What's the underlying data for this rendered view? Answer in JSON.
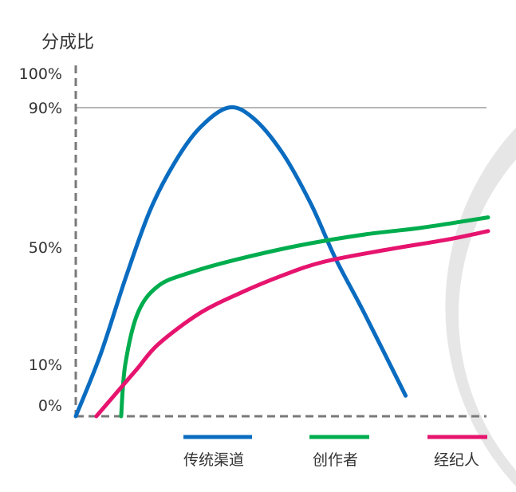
{
  "chart_data": {
    "type": "line",
    "ylabel": "分成比",
    "ylim": [
      0,
      100
    ],
    "yticks": [
      {
        "value": 100,
        "label": "100%"
      },
      {
        "value": 90,
        "label": "90%"
      },
      {
        "value": 50,
        "label": "50%"
      },
      {
        "value": 10,
        "label": "10%"
      },
      {
        "value": 0,
        "label": "0%"
      }
    ],
    "reference_line": 90,
    "series": [
      {
        "name": "传统渠道",
        "color": "#0a6cc0",
        "points": [
          [
            0,
            0
          ],
          [
            6,
            18
          ],
          [
            12,
            40
          ],
          [
            18,
            60
          ],
          [
            24,
            74
          ],
          [
            30,
            84
          ],
          [
            37,
            90
          ],
          [
            43,
            87
          ],
          [
            50,
            77
          ],
          [
            57,
            62
          ],
          [
            63,
            46
          ],
          [
            70,
            30
          ],
          [
            80,
            6
          ]
        ]
      },
      {
        "name": "创作者",
        "color": "#00ad4e",
        "points": [
          [
            11,
            0
          ],
          [
            12,
            15
          ],
          [
            15,
            30
          ],
          [
            20,
            38
          ],
          [
            28,
            42
          ],
          [
            40,
            46
          ],
          [
            55,
            50
          ],
          [
            70,
            53
          ],
          [
            84,
            55
          ],
          [
            100,
            58
          ]
        ]
      },
      {
        "name": "经纪人",
        "color": "#e6146e",
        "points": [
          [
            5,
            0
          ],
          [
            10,
            7
          ],
          [
            15,
            14
          ],
          [
            20,
            21
          ],
          [
            30,
            30
          ],
          [
            40,
            36
          ],
          [
            50,
            41
          ],
          [
            60,
            45
          ],
          [
            75,
            48.5
          ],
          [
            90,
            51.5
          ],
          [
            100,
            54
          ]
        ]
      }
    ]
  }
}
